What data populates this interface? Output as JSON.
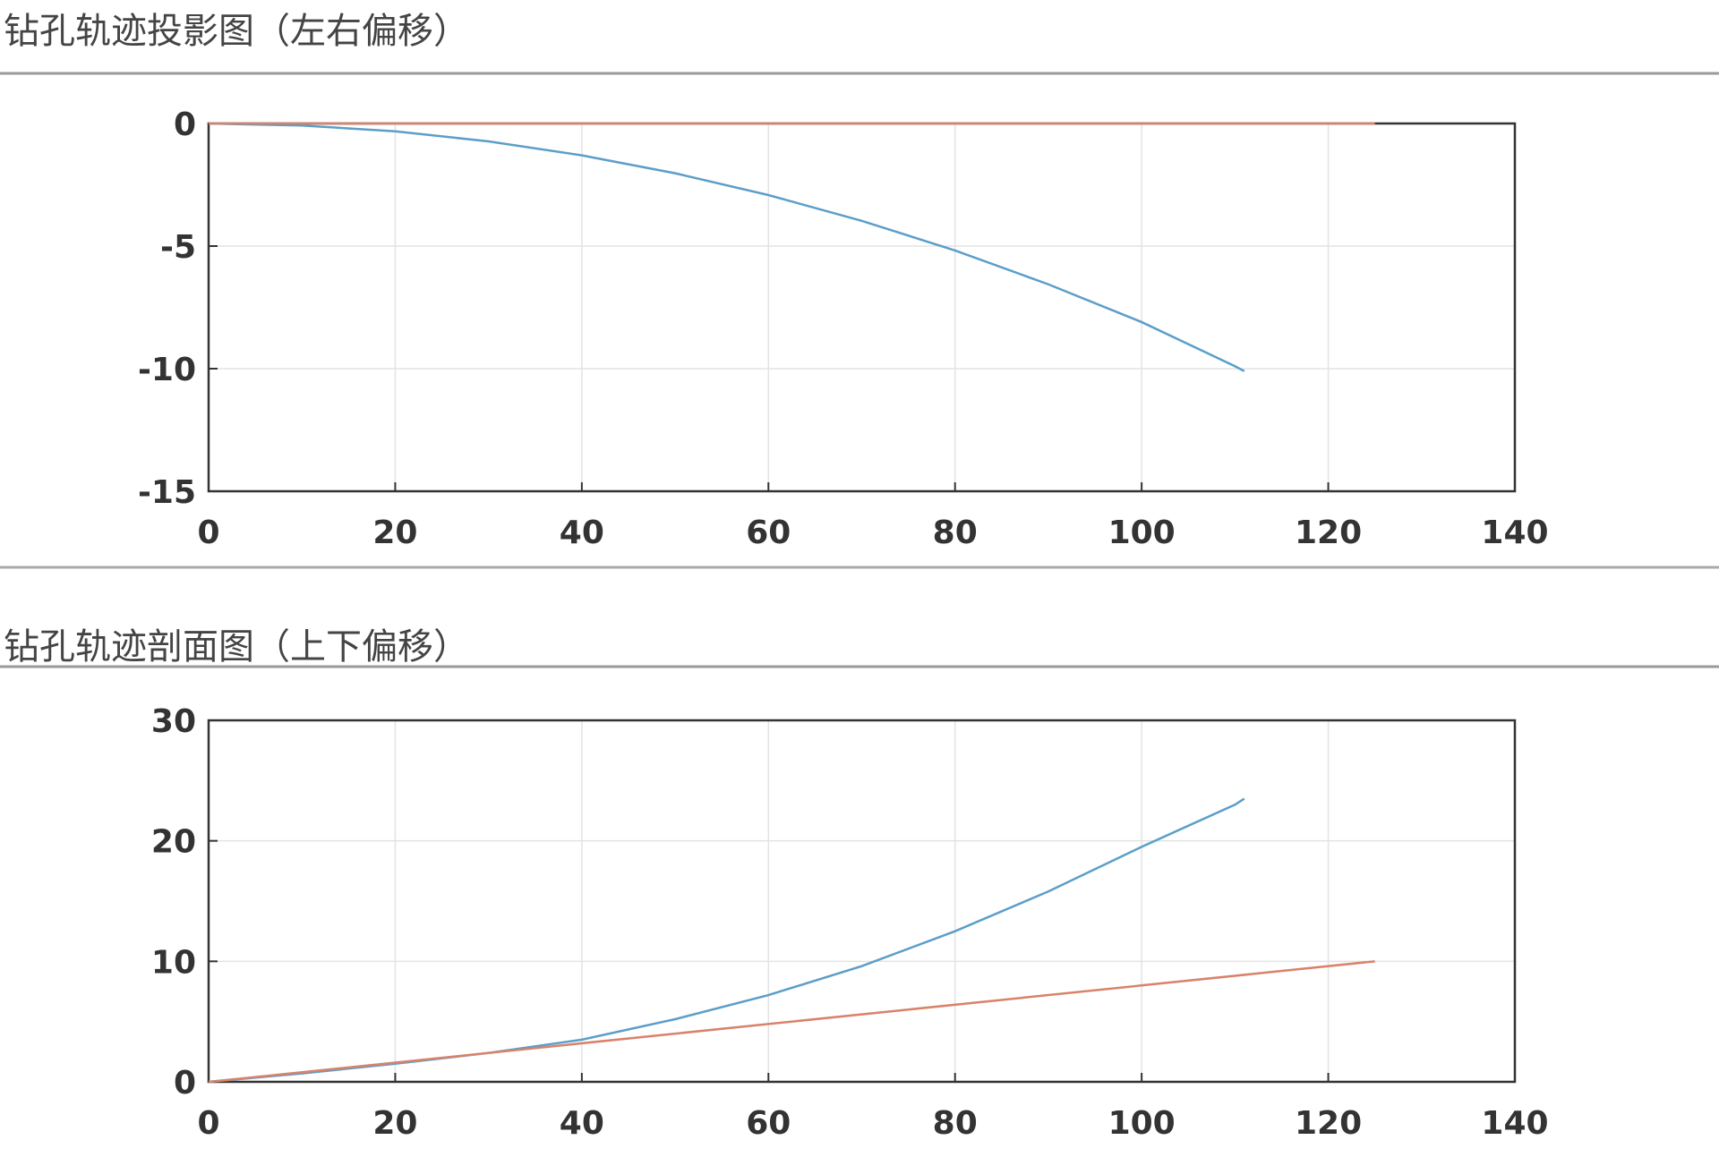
{
  "chart_data": [
    {
      "type": "line",
      "title": "钻孔轨迹投影图（左右偏移）",
      "xlim": [
        0,
        140
      ],
      "xticks": [
        0,
        20,
        40,
        60,
        80,
        100,
        120,
        140
      ],
      "ylim": [
        -15,
        0
      ],
      "yticks": [
        0,
        -5,
        -10,
        -15
      ],
      "grid": true,
      "series": [
        {
          "color": "#5b9ec9",
          "x": [
            0,
            10,
            20,
            30,
            40,
            50,
            60,
            70,
            80,
            90,
            100,
            110,
            111
          ],
          "values": [
            0,
            -0.08,
            -0.32,
            -0.73,
            -1.3,
            -2.03,
            -2.92,
            -3.97,
            -5.18,
            -6.56,
            -8.1,
            -9.9,
            -10.1
          ]
        },
        {
          "color": "#d9826a",
          "x": [
            0,
            125
          ],
          "values": [
            0,
            0
          ]
        }
      ]
    },
    {
      "type": "line",
      "title": "钻孔轨迹剖面图（上下偏移）",
      "xlim": [
        0,
        140
      ],
      "xticks": [
        0,
        20,
        40,
        60,
        80,
        100,
        120,
        140
      ],
      "ylim": [
        0,
        30
      ],
      "yticks": [
        0,
        10,
        20,
        30
      ],
      "grid": true,
      "series": [
        {
          "color": "#5b9ec9",
          "x": [
            0,
            10,
            20,
            30,
            40,
            50,
            60,
            70,
            80,
            90,
            100,
            110,
            111
          ],
          "values": [
            0,
            0.7,
            1.5,
            2.4,
            3.5,
            5.2,
            7.2,
            9.6,
            12.5,
            15.8,
            19.5,
            23.0,
            23.5
          ]
        },
        {
          "color": "#d9826a",
          "x": [
            0,
            125
          ],
          "values": [
            0,
            10
          ]
        }
      ]
    }
  ]
}
